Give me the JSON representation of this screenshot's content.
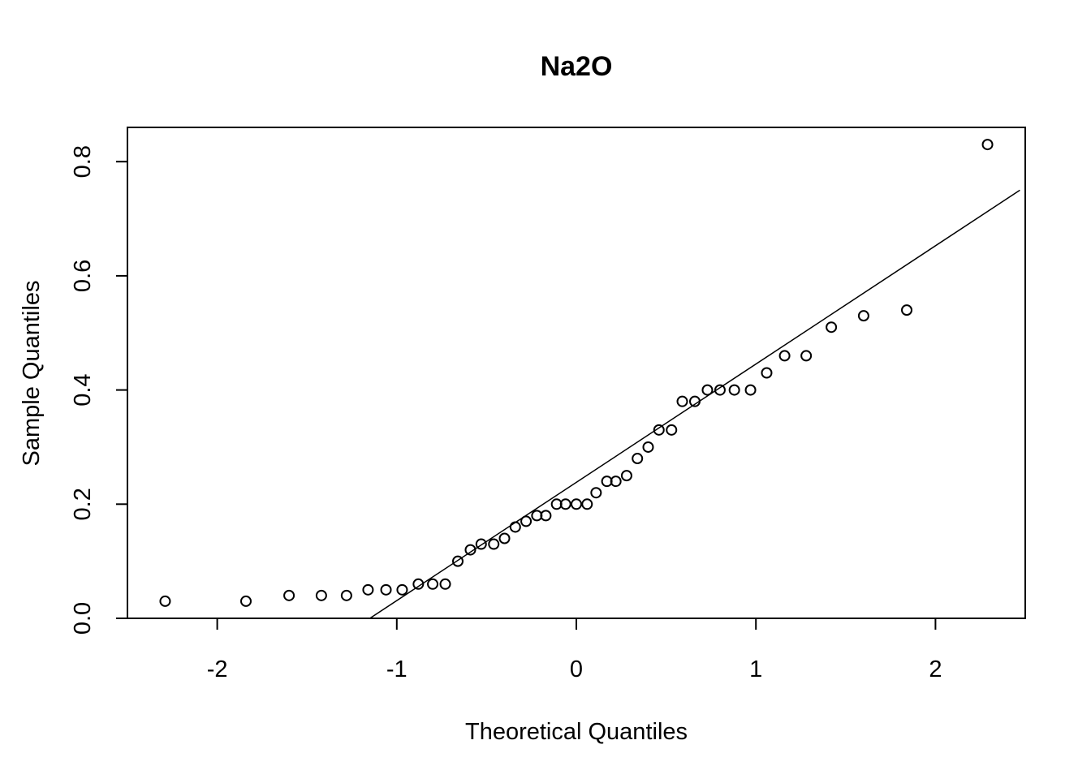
{
  "chart_data": {
    "type": "scatter",
    "title": "Na2O",
    "xlabel": "Theoretical Quantiles",
    "ylabel": "Sample Quantiles",
    "xlim": [
      -2.5,
      2.5
    ],
    "ylim": [
      0.0,
      0.86
    ],
    "x_ticks": [
      -2,
      -1,
      0,
      1,
      2
    ],
    "x_tick_labels": [
      "-2",
      "-1",
      "0",
      "1",
      "2"
    ],
    "y_ticks": [
      0.0,
      0.2,
      0.4,
      0.6,
      0.8
    ],
    "y_tick_labels": [
      "0.0",
      "0.2",
      "0.4",
      "0.6",
      "0.8"
    ],
    "grid": false,
    "reference_line": {
      "x": [
        -1.15,
        2.47
      ],
      "y": [
        0.0,
        0.75
      ]
    },
    "points": [
      {
        "x": -2.29,
        "y": 0.03
      },
      {
        "x": -1.84,
        "y": 0.03
      },
      {
        "x": -1.6,
        "y": 0.04
      },
      {
        "x": -1.42,
        "y": 0.04
      },
      {
        "x": -1.28,
        "y": 0.04
      },
      {
        "x": -1.16,
        "y": 0.05
      },
      {
        "x": -1.06,
        "y": 0.05
      },
      {
        "x": -0.97,
        "y": 0.05
      },
      {
        "x": -0.88,
        "y": 0.06
      },
      {
        "x": -0.8,
        "y": 0.06
      },
      {
        "x": -0.73,
        "y": 0.06
      },
      {
        "x": -0.66,
        "y": 0.1
      },
      {
        "x": -0.59,
        "y": 0.12
      },
      {
        "x": -0.53,
        "y": 0.13
      },
      {
        "x": -0.46,
        "y": 0.13
      },
      {
        "x": -0.4,
        "y": 0.14
      },
      {
        "x": -0.34,
        "y": 0.16
      },
      {
        "x": -0.28,
        "y": 0.17
      },
      {
        "x": -0.22,
        "y": 0.18
      },
      {
        "x": -0.17,
        "y": 0.18
      },
      {
        "x": -0.11,
        "y": 0.2
      },
      {
        "x": -0.06,
        "y": 0.2
      },
      {
        "x": 0.0,
        "y": 0.2
      },
      {
        "x": 0.06,
        "y": 0.2
      },
      {
        "x": 0.11,
        "y": 0.22
      },
      {
        "x": 0.17,
        "y": 0.24
      },
      {
        "x": 0.22,
        "y": 0.24
      },
      {
        "x": 0.28,
        "y": 0.25
      },
      {
        "x": 0.34,
        "y": 0.28
      },
      {
        "x": 0.4,
        "y": 0.3
      },
      {
        "x": 0.46,
        "y": 0.33
      },
      {
        "x": 0.53,
        "y": 0.33
      },
      {
        "x": 0.59,
        "y": 0.38
      },
      {
        "x": 0.66,
        "y": 0.38
      },
      {
        "x": 0.73,
        "y": 0.4
      },
      {
        "x": 0.8,
        "y": 0.4
      },
      {
        "x": 0.88,
        "y": 0.4
      },
      {
        "x": 0.97,
        "y": 0.4
      },
      {
        "x": 1.06,
        "y": 0.43
      },
      {
        "x": 1.16,
        "y": 0.46
      },
      {
        "x": 1.28,
        "y": 0.46
      },
      {
        "x": 1.42,
        "y": 0.51
      },
      {
        "x": 1.6,
        "y": 0.53
      },
      {
        "x": 1.84,
        "y": 0.54
      },
      {
        "x": 2.29,
        "y": 0.83
      }
    ]
  }
}
